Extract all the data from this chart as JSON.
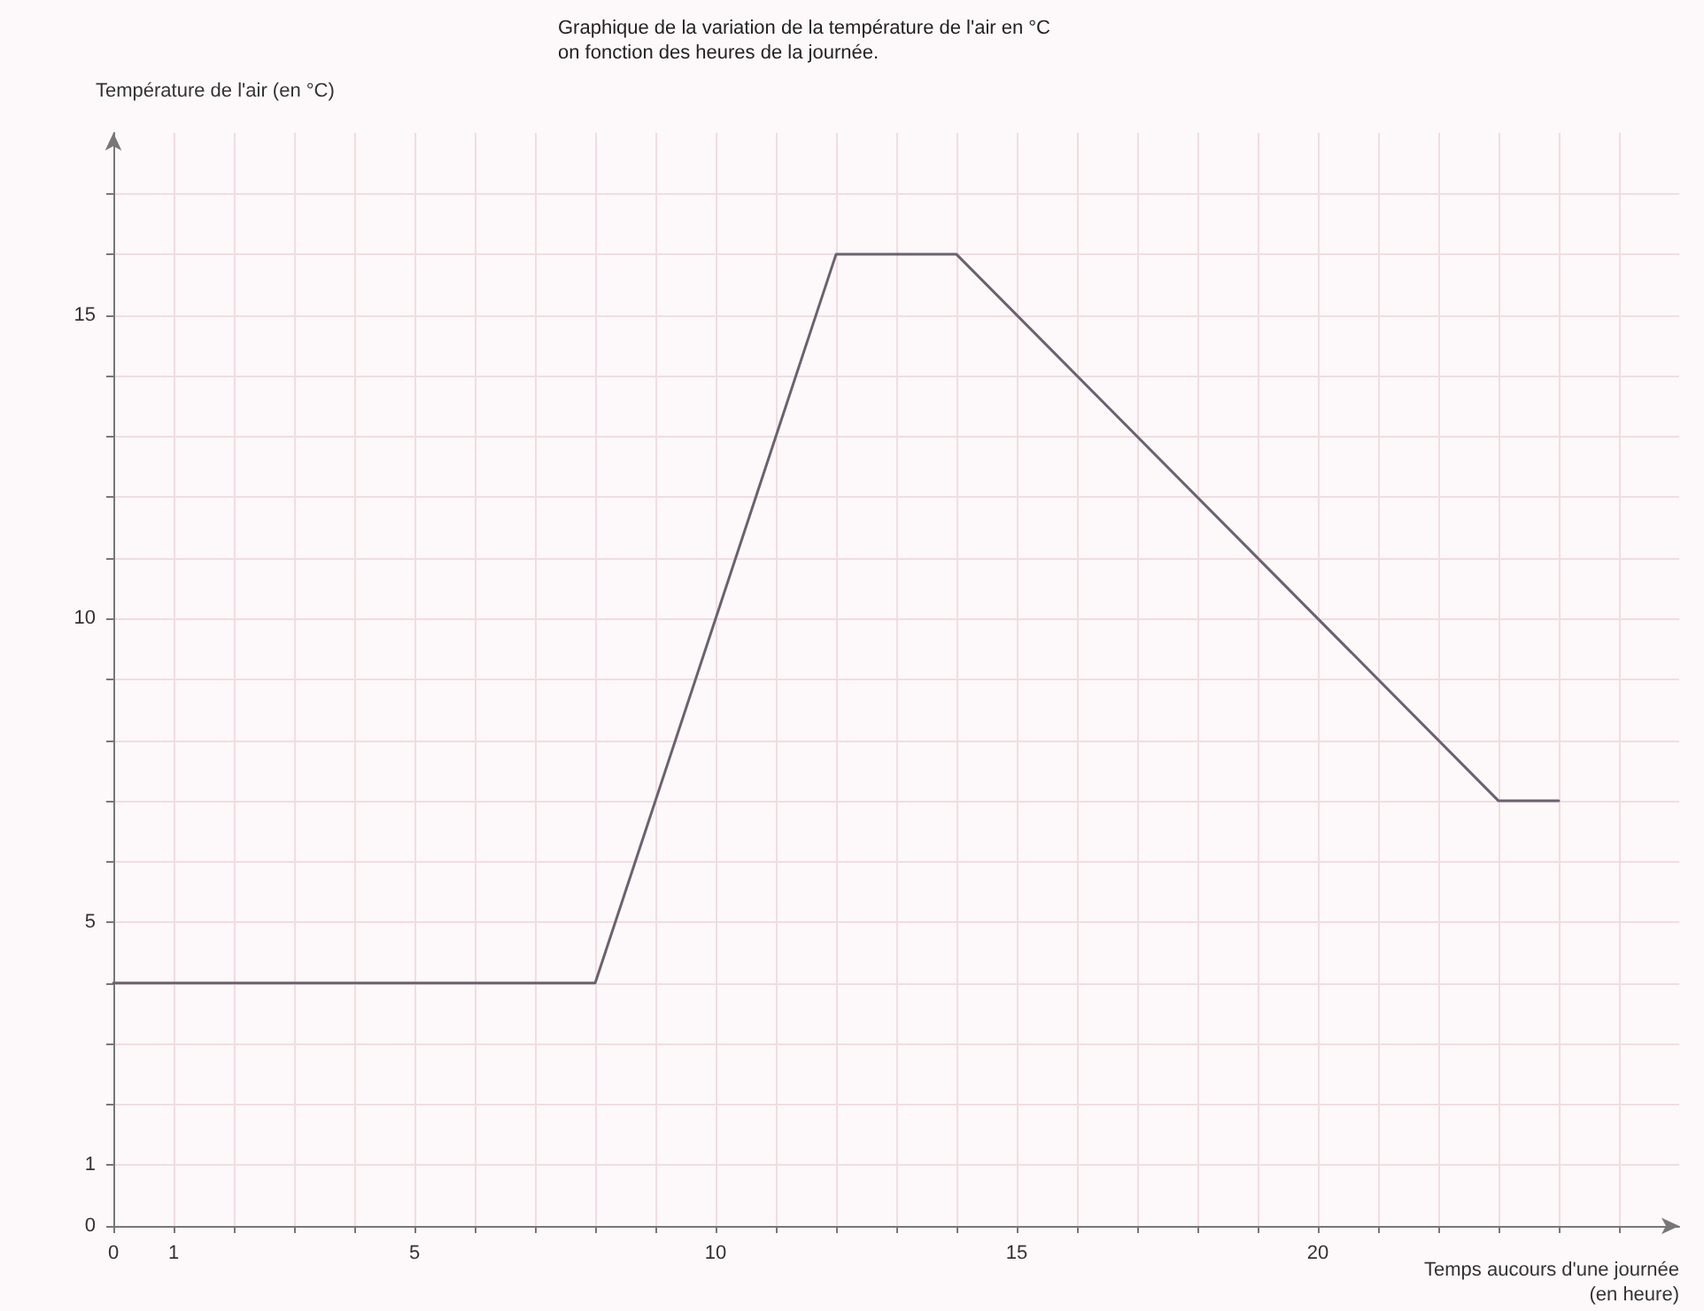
{
  "chart_data": {
    "type": "line",
    "title": "Graphique de la variation de la température de l'air en °C\non fonction des heures de la journée.",
    "xlabel": "Temps aucours d'une journée\n(en heure)",
    "ylabel": "Température de l'air (en °C)",
    "x": [
      0,
      8,
      12,
      14,
      23,
      24
    ],
    "series": [
      {
        "color": "#6a6270",
        "values": [
          4,
          4,
          16,
          16,
          7,
          7
        ]
      }
    ],
    "xlim": [
      0,
      26
    ],
    "xticks": [
      0,
      1,
      {
        "value": 2,
        "label": null
      },
      {
        "value": 3,
        "label": null
      },
      {
        "value": 4,
        "label": null
      },
      5,
      {
        "value": 6,
        "label": null
      },
      {
        "value": 7,
        "label": null
      },
      {
        "value": 8,
        "label": null
      },
      {
        "value": 9,
        "label": null
      },
      10,
      {
        "value": 11,
        "label": null
      },
      {
        "value": 12,
        "label": null
      },
      {
        "value": 13,
        "label": null
      },
      {
        "value": 14,
        "label": null
      },
      15,
      {
        "value": 16,
        "label": null
      },
      {
        "value": 17,
        "label": null
      },
      {
        "value": 18,
        "label": null
      },
      {
        "value": 19,
        "label": null
      },
      20,
      {
        "value": 21,
        "label": null
      },
      {
        "value": 22,
        "label": null
      },
      {
        "value": 23,
        "label": null
      },
      {
        "value": 24,
        "label": null
      },
      {
        "value": 25,
        "label": null
      }
    ],
    "ylim": [
      0,
      18
    ],
    "yticks": [
      0,
      1,
      {
        "value": 2,
        "label": null
      },
      {
        "value": 3,
        "label": null
      },
      {
        "value": 4,
        "label": null
      },
      5,
      {
        "value": 6,
        "label": null
      },
      {
        "value": 7,
        "label": null
      },
      {
        "value": 8,
        "label": null
      },
      {
        "value": 9,
        "label": null
      },
      10,
      {
        "value": 11,
        "label": null
      },
      {
        "value": 12,
        "label": null
      },
      {
        "value": 13,
        "label": null
      },
      {
        "value": 14,
        "label": null
      },
      15,
      {
        "value": 16,
        "label": null
      },
      {
        "value": 17,
        "label": null
      }
    ],
    "grid": true,
    "marker": "none",
    "line_style": "solid"
  }
}
